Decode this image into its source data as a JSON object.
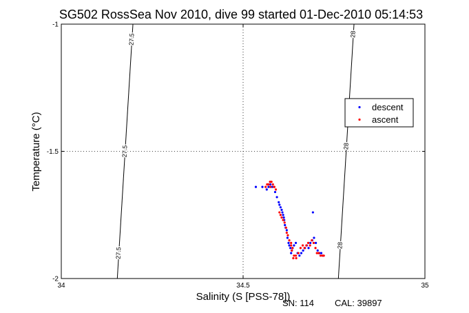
{
  "chart_data": {
    "type": "scatter",
    "title": "SG502 RossSea Nov 2010, dive 99 started 01-Dec-2010 05:14:53",
    "xlabel": "Salinity (S [PSS-78])",
    "ylabel": "Temperature (°C)",
    "xlim": [
      34,
      35
    ],
    "ylim": [
      -2,
      -1
    ],
    "xticks": [
      "34",
      "34.5",
      "35"
    ],
    "yticks": [
      "-1",
      "-1.5",
      "-2"
    ],
    "grid": "dotted",
    "legend_position": "right-upper",
    "colors": {
      "descent": "#0000ff",
      "ascent": "#ff0000",
      "contour": "#000000"
    },
    "contours": [
      {
        "label": "27.5",
        "points": [
          [
            34.197,
            -1.0
          ],
          [
            34.154,
            -2.0
          ]
        ],
        "label_positions": [
          -1.06,
          -1.5,
          -1.9
        ]
      },
      {
        "label": "28",
        "points": [
          [
            34.805,
            -1.0
          ],
          [
            34.762,
            -2.0
          ]
        ],
        "label_positions": [
          -1.04,
          -1.48,
          -1.87
        ]
      }
    ],
    "series": [
      {
        "name": "descent",
        "marker": "dot",
        "x": [
          34.535,
          34.553,
          34.565,
          34.57,
          34.575,
          34.58,
          34.588,
          34.593,
          34.598,
          34.6,
          34.603,
          34.606,
          34.608,
          34.61,
          34.612,
          34.613,
          34.615,
          34.617,
          34.62,
          34.622,
          34.625,
          34.627,
          34.63,
          34.632,
          34.634,
          34.636,
          34.64,
          34.645,
          34.65,
          34.655,
          34.66,
          34.665,
          34.67,
          34.675,
          34.68,
          34.685,
          34.69,
          34.695,
          34.7,
          34.705,
          34.71,
          34.715,
          34.72,
          34.692
        ],
        "y": [
          -1.64,
          -1.64,
          -1.65,
          -1.64,
          -1.63,
          -1.64,
          -1.66,
          -1.68,
          -1.7,
          -1.71,
          -1.72,
          -1.73,
          -1.74,
          -1.75,
          -1.76,
          -1.77,
          -1.79,
          -1.8,
          -1.81,
          -1.84,
          -1.86,
          -1.87,
          -1.88,
          -1.9,
          -1.89,
          -1.88,
          -1.87,
          -1.86,
          -1.9,
          -1.91,
          -1.9,
          -1.89,
          -1.88,
          -1.87,
          -1.88,
          -1.86,
          -1.85,
          -1.84,
          -1.86,
          -1.89,
          -1.9,
          -1.9,
          -1.91,
          -1.74
        ]
      },
      {
        "name": "ascent",
        "marker": "dot",
        "x": [
          34.562,
          34.566,
          34.57,
          34.574,
          34.578,
          34.582,
          34.586,
          34.59,
          34.585,
          34.575,
          34.568,
          34.6,
          34.603,
          34.606,
          34.61,
          34.614,
          34.618,
          34.62,
          34.623,
          34.627,
          34.632,
          34.636,
          34.64,
          34.646,
          34.652,
          34.658,
          34.664,
          34.669,
          34.674,
          34.679,
          34.684,
          34.689,
          34.694,
          34.699,
          34.703,
          34.708,
          34.713,
          34.718,
          34.722,
          34.632,
          34.634,
          34.638,
          34.645
        ],
        "y": [
          -1.64,
          -1.63,
          -1.63,
          -1.62,
          -1.62,
          -1.63,
          -1.64,
          -1.65,
          -1.64,
          -1.64,
          -1.63,
          -1.74,
          -1.75,
          -1.76,
          -1.77,
          -1.78,
          -1.8,
          -1.82,
          -1.83,
          -1.85,
          -1.87,
          -1.88,
          -1.91,
          -1.92,
          -1.9,
          -1.88,
          -1.87,
          -1.88,
          -1.87,
          -1.86,
          -1.87,
          -1.85,
          -1.86,
          -1.88,
          -1.9,
          -1.9,
          -1.91,
          -1.91,
          -1.91,
          -1.86,
          -1.89,
          -1.92,
          -1.91
        ]
      }
    ]
  },
  "footer": {
    "sn_label": "SN: 114",
    "cal_label": "CAL: 39897"
  }
}
